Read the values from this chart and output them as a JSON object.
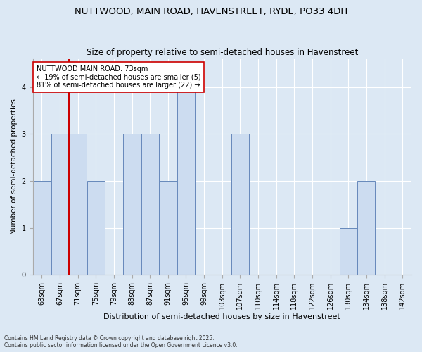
{
  "title1": "NUTTWOOD, MAIN ROAD, HAVENSTREET, RYDE, PO33 4DH",
  "title2": "Size of property relative to semi-detached houses in Havenstreet",
  "xlabel": "Distribution of semi-detached houses by size in Havenstreet",
  "ylabel": "Number of semi-detached properties",
  "annotation_title": "NUTTWOOD MAIN ROAD: 73sqm",
  "annotation_line1": "← 19% of semi-detached houses are smaller (5)",
  "annotation_line2": "81% of semi-detached houses are larger (22) →",
  "footer1": "Contains HM Land Registry data © Crown copyright and database right 2025.",
  "footer2": "Contains public sector information licensed under the Open Government Licence v3.0.",
  "bins": [
    "63sqm",
    "67sqm",
    "71sqm",
    "75sqm",
    "79sqm",
    "83sqm",
    "87sqm",
    "91sqm",
    "95sqm",
    "99sqm",
    "103sqm",
    "107sqm",
    "110sqm",
    "114sqm",
    "118sqm",
    "122sqm",
    "126sqm",
    "130sqm",
    "134sqm",
    "138sqm",
    "142sqm"
  ],
  "values": [
    2,
    3,
    3,
    2,
    0,
    3,
    3,
    2,
    4,
    0,
    0,
    3,
    0,
    0,
    0,
    0,
    0,
    1,
    2,
    0,
    0
  ],
  "bar_color": "#ccdcf0",
  "bar_edge_color": "#6688bb",
  "highlight_line_color": "#cc0000",
  "highlight_bin_index": 2,
  "annotation_box_color": "#ffffff",
  "annotation_box_edge": "#cc0000",
  "background_color": "#dce8f4",
  "ylim": [
    0,
    4.6
  ],
  "yticks": [
    0,
    1,
    2,
    3,
    4
  ],
  "title1_fontsize": 9.5,
  "title2_fontsize": 8.5,
  "footer_fontsize": 5.5,
  "ylabel_fontsize": 7.5,
  "xlabel_fontsize": 8.0,
  "tick_fontsize": 7.0,
  "annot_fontsize": 7.0
}
